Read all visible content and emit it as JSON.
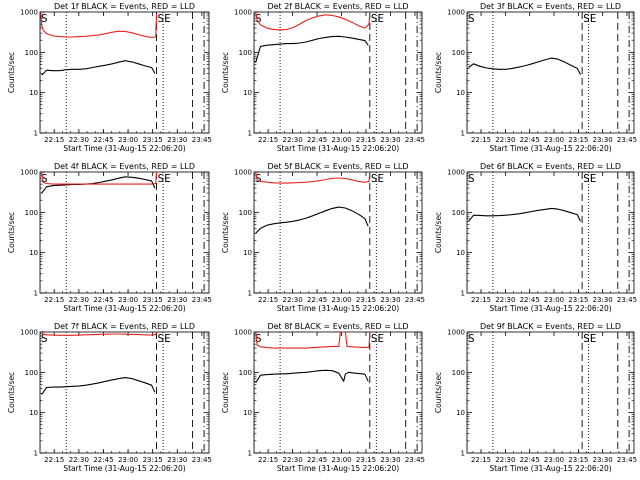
{
  "colors": {
    "events": "#000000",
    "lld": "#e8221b",
    "background": "#ffffff"
  },
  "chart_data": {
    "type": "line",
    "panel_grid": "3x3",
    "shared": {
      "ylabel": "Counts/sec",
      "xlabel": "Start Time (31-Aug-15 22:06:20)",
      "x_ticks": [
        "22:15",
        "22:30",
        "22:45",
        "23:00",
        "23:15",
        "23:30",
        "23:45"
      ],
      "x_tick_minutes": [
        8.67,
        23.67,
        38.67,
        53.67,
        68.67,
        83.67,
        98.67
      ],
      "xlim_minutes": [
        0,
        103
      ],
      "ylim": [
        1,
        1000
      ],
      "y_scale": "log",
      "y_ticks": [
        "1",
        "10",
        "100",
        "1000"
      ],
      "y_tick_values": [
        1,
        10,
        100,
        1000
      ],
      "x_axis_unit": "minutes after start time",
      "dashed_vlines_minutes": [
        0,
        71,
        93
      ],
      "dotted_vlines_minutes": [
        16,
        75
      ],
      "dashdot_vline_minutes": 100,
      "marker_labels": {
        "left": "S",
        "right": "SE"
      },
      "grid": false,
      "legend": "none"
    },
    "panels": [
      {
        "title": "Det 1f BLACK = Events, RED = LLD",
        "series": [
          {
            "name": "Events",
            "x": [
              1,
              4,
              8,
              12,
              16,
              20,
              24,
              28,
              32,
              36,
              40,
              44,
              48,
              52,
              56,
              60,
              64,
              68,
              70
            ],
            "y": [
              27,
              36,
              35,
              35,
              37,
              38,
              38,
              39,
              42,
              45,
              48,
              52,
              57,
              62,
              58,
              52,
              46,
              42,
              30
            ]
          },
          {
            "name": "LLD",
            "x": [
              0.5,
              1,
              2,
              4,
              8,
              12,
              16,
              20,
              24,
              28,
              32,
              36,
              40,
              44,
              48,
              52,
              56,
              60,
              64,
              68,
              70.5,
              71
            ],
            "y": [
              900,
              480,
              350,
              290,
              255,
              245,
              240,
              242,
              245,
              250,
              260,
              270,
              290,
              315,
              335,
              330,
              305,
              275,
              250,
              235,
              240,
              900
            ]
          }
        ]
      },
      {
        "title": "Det 2f BLACK = Events, RED = LLD",
        "series": [
          {
            "name": "Events",
            "x": [
              1,
              4,
              8,
              12,
              16,
              20,
              24,
              28,
              32,
              36,
              40,
              44,
              48,
              52,
              56,
              60,
              64,
              68,
              70
            ],
            "y": [
              55,
              140,
              150,
              155,
              160,
              165,
              165,
              170,
              180,
              200,
              220,
              235,
              245,
              250,
              240,
              225,
              210,
              195,
              150
            ]
          },
          {
            "name": "LLD",
            "x": [
              0.5,
              1,
              2,
              4,
              8,
              12,
              16,
              20,
              24,
              28,
              32,
              36,
              40,
              44,
              48,
              52,
              56,
              60,
              64,
              68,
              70.5,
              71
            ],
            "y": [
              1000,
              1000,
              620,
              480,
              400,
              370,
              360,
              370,
              410,
              500,
              620,
              720,
              800,
              850,
              820,
              760,
              660,
              560,
              460,
              400,
              500,
              1000
            ]
          }
        ]
      },
      {
        "title": "Det 3f BLACK = Events, RED = LLD",
        "series": [
          {
            "name": "Events",
            "x": [
              1,
              4,
              8,
              12,
              16,
              20,
              24,
              28,
              32,
              36,
              40,
              44,
              48,
              52,
              56,
              60,
              64,
              68,
              70
            ],
            "y": [
              42,
              52,
              45,
              41,
              39,
              38,
              38,
              40,
              43,
              47,
              52,
              58,
              65,
              72,
              68,
              58,
              48,
              40,
              28
            ]
          }
        ]
      },
      {
        "title": "Det 4f BLACK = Events, RED = LLD",
        "series": [
          {
            "name": "Events",
            "x": [
              1,
              4,
              8,
              12,
              16,
              20,
              24,
              28,
              32,
              36,
              40,
              44,
              48,
              52,
              56,
              60,
              64,
              68,
              70
            ],
            "y": [
              300,
              430,
              460,
              470,
              480,
              490,
              490,
              500,
              520,
              550,
              590,
              640,
              700,
              760,
              740,
              700,
              650,
              600,
              400
            ]
          },
          {
            "name": "LLD",
            "x": [
              0.5,
              1,
              2,
              4,
              8,
              12,
              16,
              20,
              24,
              28,
              32,
              36,
              40,
              44,
              48,
              52,
              56,
              60,
              64,
              68,
              70.5,
              71
            ],
            "y": [
              1000,
              1000,
              560,
              520,
              500,
              500,
              500,
              500,
              500,
              500,
              500,
              500,
              500,
              500,
              500,
              500,
              500,
              500,
              500,
              500,
              520,
              1000
            ]
          }
        ]
      },
      {
        "title": "Det 5f BLACK = Events, RED = LLD",
        "series": [
          {
            "name": "Events",
            "x": [
              1,
              4,
              8,
              12,
              16,
              20,
              24,
              28,
              32,
              36,
              40,
              44,
              48,
              52,
              56,
              60,
              64,
              68,
              70
            ],
            "y": [
              30,
              40,
              48,
              52,
              55,
              57,
              60,
              65,
              72,
              82,
              95,
              110,
              125,
              135,
              128,
              110,
              90,
              70,
              45
            ]
          },
          {
            "name": "LLD",
            "x": [
              0.5,
              1,
              2,
              4,
              8,
              12,
              16,
              20,
              24,
              28,
              32,
              36,
              40,
              44,
              48,
              52,
              56,
              60,
              64,
              68,
              70.5,
              71
            ],
            "y": [
              1000,
              1000,
              640,
              580,
              560,
              540,
              530,
              530,
              540,
              550,
              560,
              580,
              610,
              650,
              690,
              710,
              690,
              640,
              580,
              560,
              580,
              1000
            ]
          }
        ]
      },
      {
        "title": "Det 6f BLACK = Events, RED = LLD",
        "series": [
          {
            "name": "Events",
            "x": [
              1,
              4,
              8,
              12,
              16,
              20,
              24,
              28,
              32,
              36,
              40,
              44,
              48,
              52,
              56,
              60,
              64,
              68,
              70
            ],
            "y": [
              60,
              85,
              84,
              82,
              82,
              83,
              85,
              88,
              92,
              98,
              105,
              112,
              118,
              125,
              120,
              110,
              98,
              88,
              60
            ]
          }
        ]
      },
      {
        "title": "Det 7f BLACK = Events, RED = LLD",
        "series": [
          {
            "name": "Events",
            "x": [
              1,
              4,
              8,
              12,
              16,
              20,
              24,
              28,
              32,
              36,
              40,
              44,
              48,
              52,
              56,
              60,
              64,
              68,
              70
            ],
            "y": [
              28,
              42,
              43,
              43,
              44,
              45,
              46,
              48,
              51,
              55,
              60,
              65,
              70,
              74,
              70,
              62,
              55,
              48,
              32
            ]
          },
          {
            "name": "LLD",
            "x": [
              0.5,
              1,
              2,
              4,
              8,
              12,
              16,
              20,
              24,
              28,
              32,
              36,
              40,
              44,
              48,
              52,
              56,
              60,
              64,
              68,
              70.5,
              71
            ],
            "y": [
              1000,
              1000,
              870,
              850,
              840,
              830,
              830,
              830,
              840,
              850,
              860,
              870,
              880,
              890,
              890,
              880,
              870,
              860,
              850,
              840,
              860,
              1000
            ]
          }
        ]
      },
      {
        "title": "Det 8f BLACK = Events, RED = LLD",
        "series": [
          {
            "name": "Events",
            "x": [
              1,
              4,
              8,
              12,
              16,
              20,
              24,
              28,
              32,
              36,
              40,
              44,
              48,
              52,
              55,
              56,
              58,
              62,
              66,
              68,
              70
            ],
            "y": [
              55,
              85,
              88,
              90,
              92,
              92,
              95,
              98,
              100,
              105,
              110,
              112,
              110,
              95,
              60,
              90,
              100,
              95,
              92,
              90,
              60
            ]
          },
          {
            "name": "LLD",
            "x": [
              0.5,
              1,
              2,
              4,
              8,
              12,
              16,
              20,
              24,
              28,
              32,
              36,
              40,
              44,
              48,
              52,
              53,
              54,
              56,
              57,
              60,
              64,
              68,
              70.5,
              71
            ],
            "y": [
              1000,
              1000,
              470,
              430,
              410,
              400,
              400,
              400,
              400,
              400,
              400,
              410,
              420,
              430,
              440,
              440,
              1000,
              1000,
              1000,
              440,
              430,
              420,
              410,
              420,
              1000
            ]
          }
        ]
      },
      {
        "title": "Det 9f BLACK = Events, RED = LLD",
        "series": []
      }
    ]
  }
}
